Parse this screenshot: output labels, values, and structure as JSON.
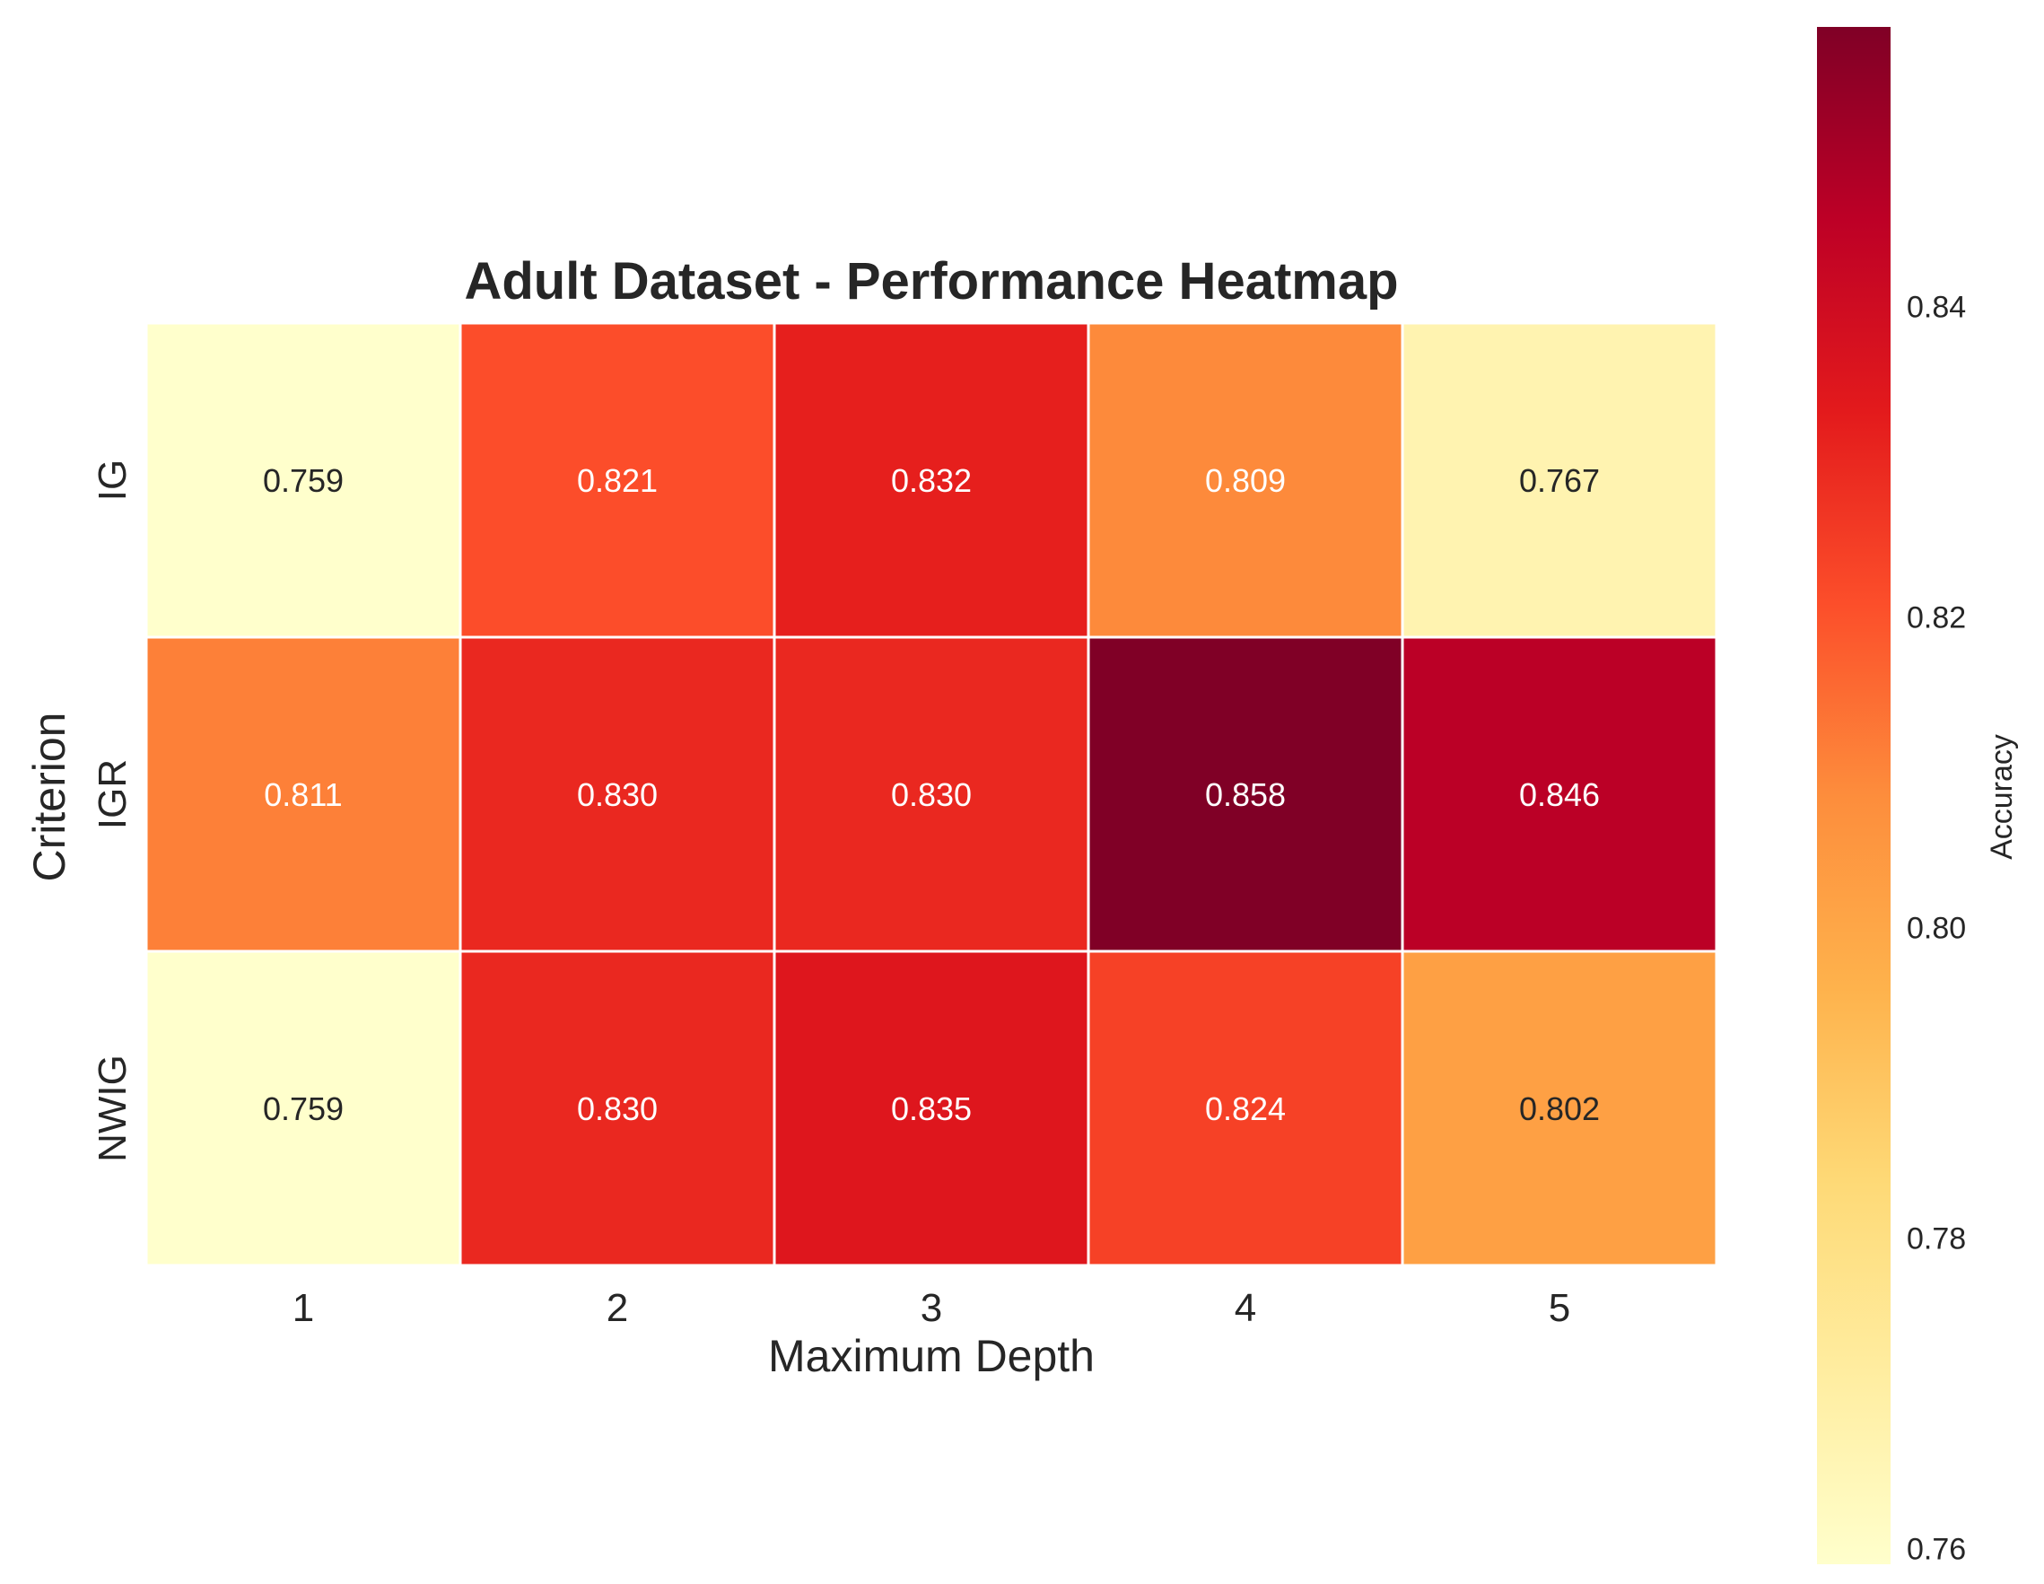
{
  "chart_data": {
    "type": "heatmap",
    "title": "Adult Dataset - Performance Heatmap",
    "xlabel": "Maximum Depth",
    "ylabel": "Criterion",
    "x_categories": [
      "1",
      "2",
      "3",
      "4",
      "5"
    ],
    "y_categories": [
      "IG",
      "IGR",
      "NWIG"
    ],
    "values": [
      [
        0.759,
        0.821,
        0.832,
        0.809,
        0.767
      ],
      [
        0.811,
        0.83,
        0.83,
        0.858,
        0.846
      ],
      [
        0.759,
        0.83,
        0.835,
        0.824,
        0.802
      ]
    ],
    "cell_labels": [
      [
        "0.759",
        "0.821",
        "0.832",
        "0.809",
        "0.767"
      ],
      [
        "0.811",
        "0.830",
        "0.830",
        "0.858",
        "0.846"
      ],
      [
        "0.759",
        "0.830",
        "0.835",
        "0.824",
        "0.802"
      ]
    ],
    "colorbar": {
      "label": "Accuracy",
      "range": [
        0.759,
        0.858
      ],
      "ticks": [
        0.76,
        0.78,
        0.8,
        0.82,
        0.84
      ],
      "tick_labels": [
        "0.76",
        "0.78",
        "0.80",
        "0.82",
        "0.84"
      ],
      "colormap": "YlOrRd"
    },
    "grid": false
  }
}
